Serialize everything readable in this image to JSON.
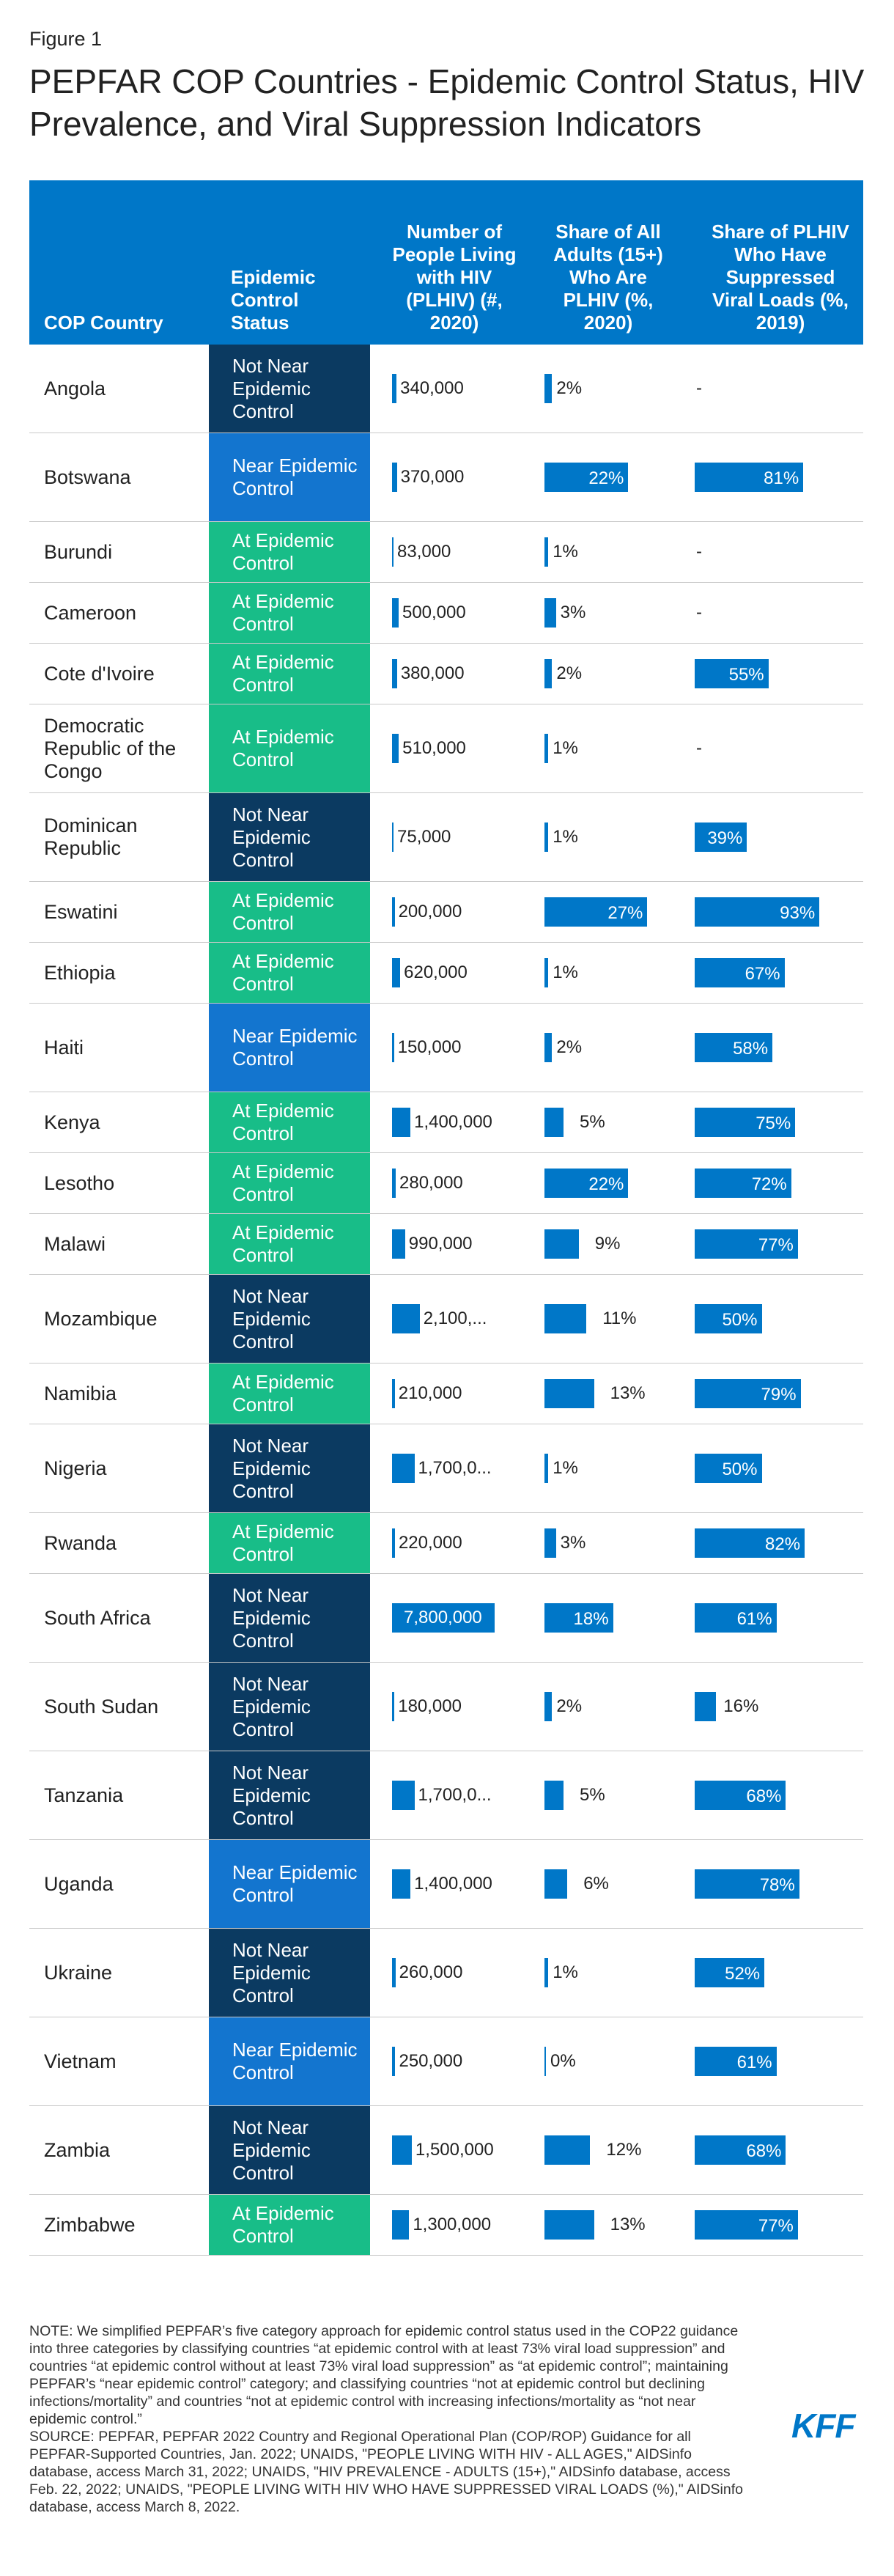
{
  "figure_label": "Figure 1",
  "title": "PEPFAR COP Countries - Epidemic Control Status, HIV Prevalence, and Viral Suppression Indicators",
  "headers": {
    "country": "COP Country",
    "status": "Epidemic Control Status",
    "plhiv": "Number of People Living with HIV (PLHIV) (#, 2020)",
    "adults": "Share of All Adults (15+) Who Are PLHIV (%, 2020)",
    "viral": "Share of PLHIV Who Have Suppressed Viral Loads (%, 2019)"
  },
  "colors": {
    "header": "#0077c8",
    "bar": "#0077c8",
    "not_near": "#0b3a61",
    "near": "#1375cf",
    "at": "#18bd88"
  },
  "chart_data": {
    "type": "table",
    "columns": [
      "COP Country",
      "Epidemic Control Status",
      "Number of People Living with HIV (PLHIV) (#, 2020)",
      "Share of All Adults (15+) Who Are PLHIV (%, 2020)",
      "Share of PLHIV Who Have Suppressed Viral Loads (%, 2019)"
    ],
    "rows": [
      {
        "country": "Angola",
        "status": "Not Near Epidemic Control",
        "plhiv": 340000,
        "plhiv_label": "340,000",
        "adults": 2,
        "adults_label": "2%",
        "viral": null,
        "viral_label": "-"
      },
      {
        "country": "Botswana",
        "status": "Near Epidemic Control",
        "plhiv": 370000,
        "plhiv_label": "370,000",
        "adults": 22,
        "adults_label": "22%",
        "viral": 81,
        "viral_label": "81%"
      },
      {
        "country": "Burundi",
        "status": "At Epidemic Control",
        "plhiv": 83000,
        "plhiv_label": "83,000",
        "adults": 1,
        "adults_label": "1%",
        "viral": null,
        "viral_label": "-"
      },
      {
        "country": "Cameroon",
        "status": "At Epidemic Control",
        "plhiv": 500000,
        "plhiv_label": "500,000",
        "adults": 3,
        "adults_label": "3%",
        "viral": null,
        "viral_label": "-"
      },
      {
        "country": "Cote d'Ivoire",
        "status": "At Epidemic Control",
        "plhiv": 380000,
        "plhiv_label": "380,000",
        "adults": 2,
        "adults_label": "2%",
        "viral": 55,
        "viral_label": "55%"
      },
      {
        "country": "Democratic Republic of the Congo",
        "status": "At Epidemic Control",
        "plhiv": 510000,
        "plhiv_label": "510,000",
        "adults": 1,
        "adults_label": "1%",
        "viral": null,
        "viral_label": "-"
      },
      {
        "country": "Dominican Republic",
        "status": "Not Near Epidemic Control",
        "plhiv": 75000,
        "plhiv_label": "75,000",
        "adults": 1,
        "adults_label": "1%",
        "viral": 39,
        "viral_label": "39%"
      },
      {
        "country": "Eswatini",
        "status": "At Epidemic Control",
        "plhiv": 200000,
        "plhiv_label": "200,000",
        "adults": 27,
        "adults_label": "27%",
        "viral": 93,
        "viral_label": "93%"
      },
      {
        "country": "Ethiopia",
        "status": "At Epidemic Control",
        "plhiv": 620000,
        "plhiv_label": "620,000",
        "adults": 1,
        "adults_label": "1%",
        "viral": 67,
        "viral_label": "67%"
      },
      {
        "country": "Haiti",
        "status": "Near Epidemic Control",
        "plhiv": 150000,
        "plhiv_label": "150,000",
        "adults": 2,
        "adults_label": "2%",
        "viral": 58,
        "viral_label": "58%"
      },
      {
        "country": "Kenya",
        "status": "At Epidemic Control",
        "plhiv": 1400000,
        "plhiv_label": "1,400,000",
        "adults": 5,
        "adults_label": "5%",
        "viral": 75,
        "viral_label": "75%"
      },
      {
        "country": "Lesotho",
        "status": "At Epidemic Control",
        "plhiv": 280000,
        "plhiv_label": "280,000",
        "adults": 22,
        "adults_label": "22%",
        "viral": 72,
        "viral_label": "72%"
      },
      {
        "country": "Malawi",
        "status": "At Epidemic Control",
        "plhiv": 990000,
        "plhiv_label": "990,000",
        "adults": 9,
        "adults_label": "9%",
        "viral": 77,
        "viral_label": "77%"
      },
      {
        "country": "Mozambique",
        "status": "Not Near Epidemic Control",
        "plhiv": 2100000,
        "plhiv_label": "2,100,...",
        "adults": 11,
        "adults_label": "11%",
        "viral": 50,
        "viral_label": "50%"
      },
      {
        "country": "Namibia",
        "status": "At Epidemic Control",
        "plhiv": 210000,
        "plhiv_label": "210,000",
        "adults": 13,
        "adults_label": "13%",
        "viral": 79,
        "viral_label": "79%"
      },
      {
        "country": "Nigeria",
        "status": "Not Near Epidemic Control",
        "plhiv": 1700000,
        "plhiv_label": "1,700,0...",
        "adults": 1,
        "adults_label": "1%",
        "viral": 50,
        "viral_label": "50%"
      },
      {
        "country": "Rwanda",
        "status": "At Epidemic Control",
        "plhiv": 220000,
        "plhiv_label": "220,000",
        "adults": 3,
        "adults_label": "3%",
        "viral": 82,
        "viral_label": "82%"
      },
      {
        "country": "South Africa",
        "status": "Not Near Epidemic Control",
        "plhiv": 7800000,
        "plhiv_label": "7,800,000",
        "adults": 18,
        "adults_label": "18%",
        "viral": 61,
        "viral_label": "61%"
      },
      {
        "country": "South Sudan",
        "status": "Not Near Epidemic Control",
        "plhiv": 180000,
        "plhiv_label": "180,000",
        "adults": 2,
        "adults_label": "2%",
        "viral": 16,
        "viral_label": "16%"
      },
      {
        "country": "Tanzania",
        "status": "Not Near Epidemic Control",
        "plhiv": 1700000,
        "plhiv_label": "1,700,0...",
        "adults": 5,
        "adults_label": "5%",
        "viral": 68,
        "viral_label": "68%"
      },
      {
        "country": "Uganda",
        "status": "Near Epidemic Control",
        "plhiv": 1400000,
        "plhiv_label": "1,400,000",
        "adults": 6,
        "adults_label": "6%",
        "viral": 78,
        "viral_label": "78%"
      },
      {
        "country": "Ukraine",
        "status": "Not Near Epidemic Control",
        "plhiv": 260000,
        "plhiv_label": "260,000",
        "adults": 1,
        "adults_label": "1%",
        "viral": 52,
        "viral_label": "52%"
      },
      {
        "country": "Vietnam",
        "status": "Near Epidemic Control",
        "plhiv": 250000,
        "plhiv_label": "250,000",
        "adults": 0,
        "adults_label": "0%",
        "viral": 61,
        "viral_label": "61%"
      },
      {
        "country": "Zambia",
        "status": "Not Near Epidemic Control",
        "plhiv": 1500000,
        "plhiv_label": "1,500,000",
        "adults": 12,
        "adults_label": "12%",
        "viral": 68,
        "viral_label": "68%"
      },
      {
        "country": "Zimbabwe",
        "status": "At Epidemic Control",
        "plhiv": 1300000,
        "plhiv_label": "1,300,000",
        "adults": 13,
        "adults_label": "13%",
        "viral": 77,
        "viral_label": "77%"
      }
    ]
  },
  "note": "NOTE: We simplified PEPFAR’s five category approach for epidemic control status used in the COP22 guidance into three categories by classifying countries “at epidemic control with at least 73% viral load suppression” and countries “at epidemic control without at least 73% viral load suppression” as “at epidemic control”; maintaining PEPFAR’s “near epidemic control” category; and classifying countries “not at epidemic control but declining infections/mortality” and countries “not at epidemic control with increasing infections/mortality as “not near epidemic control.”",
  "source": "SOURCE: PEPFAR, PEPFAR 2022 Country and Regional Operational Plan (COP/ROP) Guidance for all PEPFAR-Supported Countries, Jan. 2022; UNAIDS, \"PEOPLE LIVING WITH HIV - ALL AGES,\" AIDSinfo database, access March 31, 2022; UNAIDS, \"HIV PREVALENCE - ADULTS (15+),\" AIDSinfo database, access Feb. 22, 2022; UNAIDS, \"PEOPLE LIVING WITH HIV WHO HAVE SUPPRESSED VIRAL LOADS (%),\" AIDSinfo database, access March 8, 2022.",
  "logo_text": "KFF"
}
